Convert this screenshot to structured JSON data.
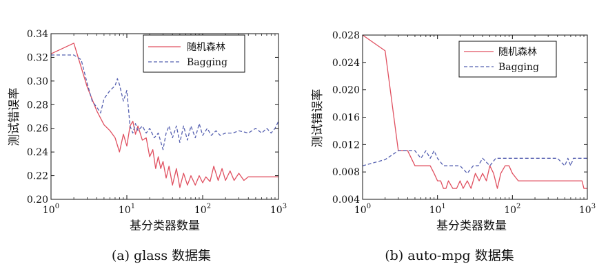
{
  "chart_data": [
    {
      "type": "line",
      "caption": "(a) glass 数据集",
      "xlabel": "基分类器数量",
      "ylabel": "测试错误率",
      "xscale": "log",
      "xlim": [
        1,
        1000
      ],
      "ylim": [
        0.2,
        0.34
      ],
      "xticks": [
        {
          "base": "10",
          "exp": "0"
        },
        {
          "base": "10",
          "exp": "1"
        },
        {
          "base": "10",
          "exp": "2"
        },
        {
          "base": "10",
          "exp": "3"
        }
      ],
      "yticks": [
        "0.20",
        "0.22",
        "0.24",
        "0.26",
        "0.28",
        "0.30",
        "0.32",
        "0.34"
      ],
      "legend_position": "top-right",
      "series": [
        {
          "name": "随机森林",
          "color": "#e05060",
          "style": "solid",
          "points": [
            [
              1,
              0.323
            ],
            [
              2,
              0.332
            ],
            [
              3,
              0.295
            ],
            [
              4,
              0.275
            ],
            [
              5,
              0.263
            ],
            [
              6,
              0.258
            ],
            [
              7,
              0.252
            ],
            [
              8,
              0.24
            ],
            [
              9,
              0.255
            ],
            [
              10,
              0.245
            ],
            [
              11,
              0.262
            ],
            [
              12,
              0.266
            ],
            [
              13,
              0.255
            ],
            [
              14,
              0.262
            ],
            [
              16,
              0.25
            ],
            [
              18,
              0.252
            ],
            [
              20,
              0.236
            ],
            [
              22,
              0.242
            ],
            [
              24,
              0.226
            ],
            [
              26,
              0.236
            ],
            [
              28,
              0.226
            ],
            [
              30,
              0.232
            ],
            [
              33,
              0.218
            ],
            [
              36,
              0.228
            ],
            [
              40,
              0.212
            ],
            [
              45,
              0.226
            ],
            [
              50,
              0.21
            ],
            [
              56,
              0.222
            ],
            [
              63,
              0.212
            ],
            [
              70,
              0.22
            ],
            [
              80,
              0.212
            ],
            [
              90,
              0.22
            ],
            [
              100,
              0.214
            ],
            [
              110,
              0.219
            ],
            [
              125,
              0.215
            ],
            [
              140,
              0.228
            ],
            [
              160,
              0.216
            ],
            [
              180,
              0.226
            ],
            [
              200,
              0.216
            ],
            [
              230,
              0.224
            ],
            [
              260,
              0.216
            ],
            [
              300,
              0.222
            ],
            [
              350,
              0.216
            ],
            [
              400,
              0.219
            ],
            [
              500,
              0.219
            ],
            [
              600,
              0.219
            ],
            [
              700,
              0.219
            ],
            [
              1000,
              0.219
            ]
          ]
        },
        {
          "name": "Bagging",
          "color": "#5560b0",
          "style": "dashed",
          "points": [
            [
              1,
              0.322
            ],
            [
              1.5,
              0.322
            ],
            [
              2,
              0.322
            ],
            [
              2.5,
              0.318
            ],
            [
              3,
              0.298
            ],
            [
              3.5,
              0.283
            ],
            [
              4,
              0.278
            ],
            [
              4.5,
              0.273
            ],
            [
              5,
              0.285
            ],
            [
              6,
              0.292
            ],
            [
              7,
              0.296
            ],
            [
              7.5,
              0.302
            ],
            [
              8,
              0.297
            ],
            [
              9,
              0.283
            ],
            [
              10,
              0.292
            ],
            [
              11,
              0.262
            ],
            [
              12,
              0.256
            ],
            [
              13,
              0.264
            ],
            [
              14,
              0.258
            ],
            [
              16,
              0.262
            ],
            [
              18,
              0.256
            ],
            [
              20,
              0.26
            ],
            [
              23,
              0.252
            ],
            [
              26,
              0.256
            ],
            [
              30,
              0.242
            ],
            [
              33,
              0.256
            ],
            [
              36,
              0.262
            ],
            [
              40,
              0.252
            ],
            [
              45,
              0.262
            ],
            [
              50,
              0.248
            ],
            [
              56,
              0.262
            ],
            [
              63,
              0.25
            ],
            [
              70,
              0.262
            ],
            [
              80,
              0.252
            ],
            [
              90,
              0.264
            ],
            [
              100,
              0.254
            ],
            [
              115,
              0.26
            ],
            [
              130,
              0.254
            ],
            [
              150,
              0.258
            ],
            [
              170,
              0.254
            ],
            [
              200,
              0.256
            ],
            [
              250,
              0.256
            ],
            [
              300,
              0.258
            ],
            [
              400,
              0.256
            ],
            [
              500,
              0.26
            ],
            [
              600,
              0.256
            ],
            [
              700,
              0.26
            ],
            [
              800,
              0.256
            ],
            [
              900,
              0.26
            ],
            [
              1000,
              0.266
            ]
          ]
        }
      ]
    },
    {
      "type": "line",
      "caption": "(b) auto-mpg 数据集",
      "xlabel": "基分类器数量",
      "ylabel": "测试错误率",
      "xscale": "log",
      "xlim": [
        1,
        1000
      ],
      "ylim": [
        0.004,
        0.028
      ],
      "xticks": [
        {
          "base": "10",
          "exp": "0"
        },
        {
          "base": "10",
          "exp": "1"
        },
        {
          "base": "10",
          "exp": "2"
        },
        {
          "base": "10",
          "exp": "3"
        }
      ],
      "yticks": [
        "0.004",
        "0.008",
        "0.012",
        "0.016",
        "0.020",
        "0.024",
        "0.028"
      ],
      "legend_position": "top-right",
      "series": [
        {
          "name": "随机森林",
          "color": "#e05060",
          "style": "solid",
          "points": [
            [
              1,
              0.028
            ],
            [
              2,
              0.0257
            ],
            [
              3,
              0.0111
            ],
            [
              4,
              0.0111
            ],
            [
              5,
              0.0089
            ],
            [
              6,
              0.0089
            ],
            [
              7,
              0.0089
            ],
            [
              8,
              0.0089
            ],
            [
              9,
              0.0078
            ],
            [
              10,
              0.0067
            ],
            [
              11,
              0.0067
            ],
            [
              12,
              0.0056
            ],
            [
              13,
              0.0056
            ],
            [
              14,
              0.0067
            ],
            [
              16,
              0.0056
            ],
            [
              18,
              0.0056
            ],
            [
              20,
              0.0067
            ],
            [
              22,
              0.0056
            ],
            [
              25,
              0.0067
            ],
            [
              28,
              0.0056
            ],
            [
              32,
              0.0078
            ],
            [
              36,
              0.0067
            ],
            [
              40,
              0.0078
            ],
            [
              45,
              0.0067
            ],
            [
              50,
              0.0089
            ],
            [
              56,
              0.0078
            ],
            [
              63,
              0.0056
            ],
            [
              70,
              0.0078
            ],
            [
              80,
              0.0089
            ],
            [
              90,
              0.0089
            ],
            [
              100,
              0.0078
            ],
            [
              120,
              0.0067
            ],
            [
              150,
              0.0067
            ],
            [
              200,
              0.0067
            ],
            [
              300,
              0.0067
            ],
            [
              500,
              0.0067
            ],
            [
              700,
              0.0067
            ],
            [
              850,
              0.0067
            ],
            [
              900,
              0.0056
            ],
            [
              1000,
              0.0056
            ]
          ]
        },
        {
          "name": "Bagging",
          "color": "#5560b0",
          "style": "dashed",
          "points": [
            [
              1,
              0.0089
            ],
            [
              2,
              0.0098
            ],
            [
              3,
              0.0111
            ],
            [
              4,
              0.0111
            ],
            [
              5,
              0.0111
            ],
            [
              6,
              0.01
            ],
            [
              7,
              0.0111
            ],
            [
              8,
              0.01
            ],
            [
              9,
              0.0111
            ],
            [
              10,
              0.01
            ],
            [
              12,
              0.0089
            ],
            [
              15,
              0.0089
            ],
            [
              20,
              0.0089
            ],
            [
              25,
              0.0078
            ],
            [
              30,
              0.0089
            ],
            [
              35,
              0.0089
            ],
            [
              40,
              0.01
            ],
            [
              50,
              0.0089
            ],
            [
              60,
              0.01
            ],
            [
              70,
              0.01
            ],
            [
              80,
              0.01
            ],
            [
              100,
              0.01
            ],
            [
              130,
              0.01
            ],
            [
              160,
              0.01
            ],
            [
              200,
              0.01
            ],
            [
              300,
              0.01
            ],
            [
              400,
              0.01
            ],
            [
              500,
              0.0089
            ],
            [
              550,
              0.01
            ],
            [
              600,
              0.0089
            ],
            [
              650,
              0.01
            ],
            [
              700,
              0.01
            ],
            [
              1000,
              0.01
            ]
          ]
        }
      ]
    }
  ]
}
